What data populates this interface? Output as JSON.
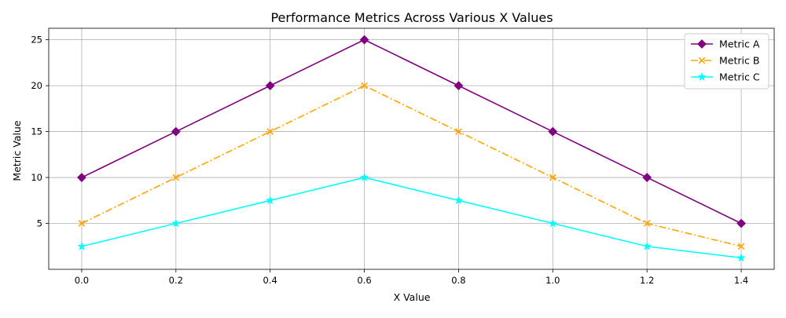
{
  "chart_data": {
    "type": "line",
    "title": "Performance Metrics Across Various X Values",
    "xlabel": "X Value",
    "ylabel": "Metric Value",
    "x": [
      0.0,
      0.2,
      0.4,
      0.6,
      0.8,
      1.0,
      1.2,
      1.4
    ],
    "xlim": [
      -0.07,
      1.47
    ],
    "ylim": [
      0.0,
      26.25
    ],
    "xticks": [
      "0.0",
      "0.2",
      "0.4",
      "0.6",
      "0.8",
      "1.0",
      "1.2",
      "1.4"
    ],
    "yticks": [
      "5",
      "10",
      "15",
      "20",
      "25"
    ],
    "grid": true,
    "legend_position": "top-right",
    "series": [
      {
        "name": "Metric A",
        "values": [
          10,
          15,
          20,
          25,
          20,
          15,
          10,
          5
        ],
        "color": "#800080",
        "marker": "diamond",
        "linestyle": "solid"
      },
      {
        "name": "Metric B",
        "values": [
          5,
          10,
          15,
          20,
          15,
          10,
          5,
          2.5
        ],
        "color": "#FFA500",
        "marker": "x",
        "linestyle": "dashdot"
      },
      {
        "name": "Metric C",
        "values": [
          2.5,
          5,
          7.5,
          10,
          7.5,
          5,
          2.5,
          1.25
        ],
        "color": "#00FFFF",
        "marker": "star",
        "linestyle": "solid"
      }
    ]
  }
}
